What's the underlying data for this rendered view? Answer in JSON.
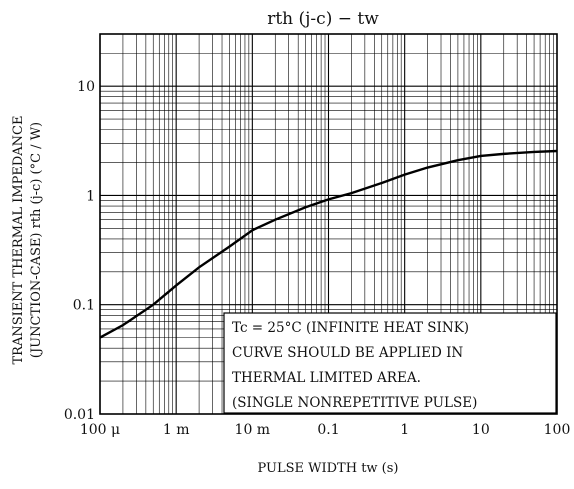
{
  "chart_data": {
    "type": "line",
    "title": "rth (j-c) − tw",
    "xlabel": "PULSE WIDTH  tw  (s)",
    "ylabel_line1": "TRANSIENT THERMAL IMPEDANCE",
    "ylabel_line2": "(JUNCTION-CASE)  rth (j-c)  (°C / W)",
    "x_scale": "log",
    "y_scale": "log",
    "xlim": [
      0.0001,
      100
    ],
    "ylim": [
      0.01,
      30
    ],
    "grid": true,
    "x_ticks": [
      {
        "value": 0.0001,
        "label": "100 μ"
      },
      {
        "value": 0.001,
        "label": "1 m"
      },
      {
        "value": 0.01,
        "label": "10 m"
      },
      {
        "value": 0.1,
        "label": "0.1"
      },
      {
        "value": 1,
        "label": "1"
      },
      {
        "value": 10,
        "label": "10"
      },
      {
        "value": 100,
        "label": "100"
      }
    ],
    "y_ticks": [
      {
        "value": 0.01,
        "label": "0.01"
      },
      {
        "value": 0.1,
        "label": "0.1"
      },
      {
        "value": 1,
        "label": "1"
      },
      {
        "value": 10,
        "label": "10"
      }
    ],
    "series": [
      {
        "x": [
          0.0001,
          0.0002,
          0.0005,
          0.001,
          0.002,
          0.005,
          0.01,
          0.02,
          0.05,
          0.1,
          0.2,
          0.5,
          1,
          2,
          5,
          10,
          20,
          50,
          100
        ],
        "y": [
          0.05,
          0.065,
          0.1,
          0.15,
          0.22,
          0.34,
          0.48,
          0.6,
          0.78,
          0.92,
          1.05,
          1.3,
          1.55,
          1.8,
          2.1,
          2.3,
          2.4,
          2.5,
          2.55
        ]
      }
    ],
    "annotation": [
      "Tc = 25°C (INFINITE HEAT SINK)",
      "CURVE SHOULD BE APPLIED IN",
      "THERMAL LIMITED AREA.",
      "(SINGLE NONREPETITIVE PULSE)"
    ]
  }
}
